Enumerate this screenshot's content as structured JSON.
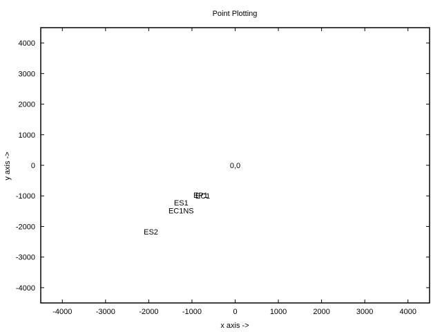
{
  "chart_data": {
    "type": "scatter",
    "title": "Point Plotting",
    "xlabel": "x axis ->",
    "ylabel": "y axis ->",
    "xlim": [
      -4500,
      4500
    ],
    "ylim": [
      -4500,
      4500
    ],
    "xticks": [
      -4000,
      -3000,
      -2000,
      -1000,
      0,
      1000,
      2000,
      3000,
      4000
    ],
    "yticks": [
      -4000,
      -3000,
      -2000,
      -1000,
      0,
      1000,
      2000,
      3000,
      4000
    ],
    "grid": false,
    "legend": "none",
    "points": [
      {
        "label": "0,0",
        "x": 0,
        "y": 0
      },
      {
        "label": "EP1",
        "x": -800,
        "y": -970
      },
      {
        "label": "EC1",
        "x": -750,
        "y": -1000
      },
      {
        "label": "ES1",
        "x": -1250,
        "y": -1220
      },
      {
        "label": "EC1NS",
        "x": -1250,
        "y": -1480
      },
      {
        "label": "ES2",
        "x": -1950,
        "y": -2170
      }
    ]
  },
  "colors": {
    "axis": "#000000",
    "background": "#ffffff",
    "text": "#000000"
  }
}
